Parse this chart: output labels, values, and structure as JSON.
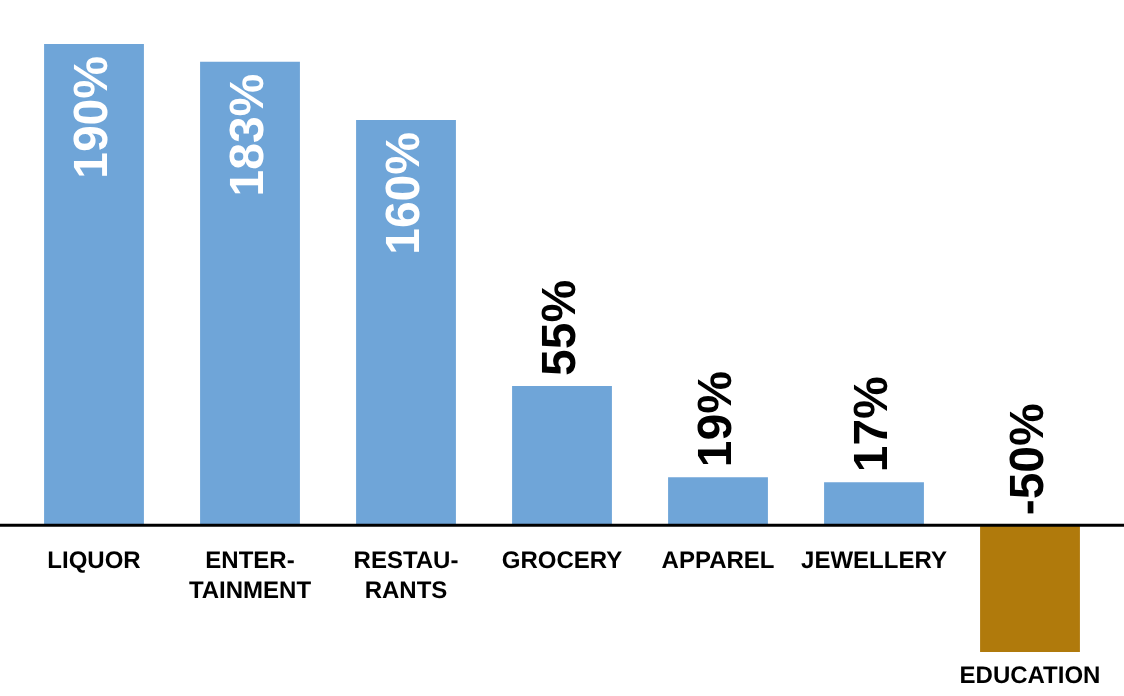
{
  "chart_data": {
    "type": "bar",
    "categories": [
      "LIQUOR",
      "ENTER-\nTAINMENT",
      "RESTAU-\nRANTS",
      "GROCERY",
      "APPAREL",
      "JEWELLERY",
      "EDUCATION"
    ],
    "values": [
      190,
      183,
      160,
      55,
      19,
      17,
      -50
    ],
    "colors": [
      "#6fa5d8",
      "#6fa5d8",
      "#6fa5d8",
      "#6fa5d8",
      "#6fa5d8",
      "#6fa5d8",
      "#b07a0c"
    ],
    "value_labels": [
      "190%",
      "183%",
      "160%",
      "55%",
      "19%",
      "17%",
      "-50%"
    ],
    "legend": false
  }
}
